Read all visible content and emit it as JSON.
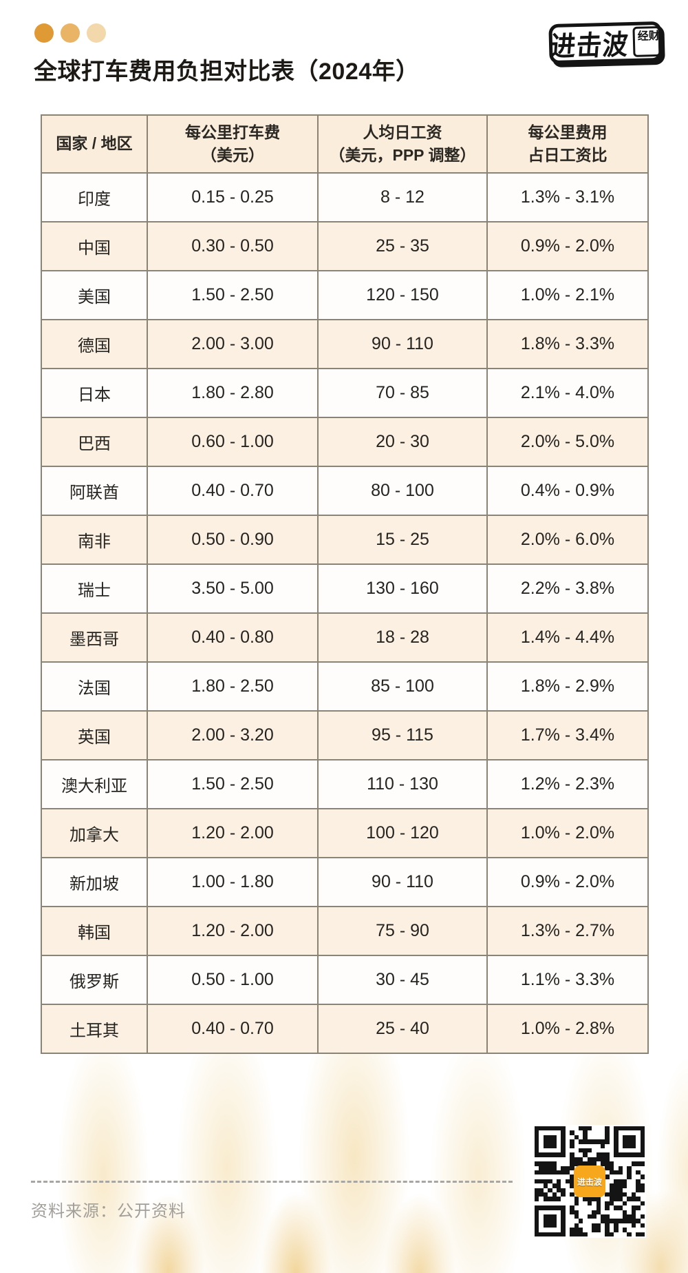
{
  "title": "全球打车费用负担对比表（2024年）",
  "brand": {
    "main": "进击波",
    "sub": "财经"
  },
  "decor": {
    "dot_colors": [
      "#df9a35",
      "#eab466",
      "#f2d8ab"
    ]
  },
  "colors": {
    "header_bg": "#faeddb",
    "row_bg": "#fffdfb",
    "row_alt_bg": "#fbf0e2",
    "table_border": "#8b8474",
    "qr_logo_bg": "#f6a71b"
  },
  "chart_data": {
    "type": "table",
    "title": "全球打车费用负担对比表（2024年）",
    "columns": [
      {
        "label_lines": [
          "国家 / 地区"
        ]
      },
      {
        "label_lines": [
          "每公里打车费",
          "（美元）"
        ]
      },
      {
        "label_lines": [
          "人均日工资",
          "（美元，PPP 调整）"
        ]
      },
      {
        "label_lines": [
          "每公里费用",
          "占日工资比"
        ]
      }
    ],
    "rows": [
      [
        "印度",
        "0.15 - 0.25",
        "8 - 12",
        "1.3% - 3.1%"
      ],
      [
        "中国",
        "0.30 - 0.50",
        "25 - 35",
        "0.9% - 2.0%"
      ],
      [
        "美国",
        "1.50 - 2.50",
        "120 - 150",
        "1.0% - 2.1%"
      ],
      [
        "德国",
        "2.00 - 3.00",
        "90 - 110",
        "1.8% - 3.3%"
      ],
      [
        "日本",
        "1.80 - 2.80",
        "70 - 85",
        "2.1% - 4.0%"
      ],
      [
        "巴西",
        "0.60 - 1.00",
        "20 - 30",
        "2.0% - 5.0%"
      ],
      [
        "阿联酋",
        "0.40 - 0.70",
        "80 - 100",
        "0.4% - 0.9%"
      ],
      [
        "南非",
        "0.50 - 0.90",
        "15 - 25",
        "2.0% - 6.0%"
      ],
      [
        "瑞士",
        "3.50 - 5.00",
        "130 - 160",
        "2.2% - 3.8%"
      ],
      [
        "墨西哥",
        "0.40 - 0.80",
        "18 - 28",
        "1.4% - 4.4%"
      ],
      [
        "法国",
        "1.80 - 2.50",
        "85 - 100",
        "1.8% - 2.9%"
      ],
      [
        "英国",
        "2.00 - 3.20",
        "95 - 115",
        "1.7% - 3.4%"
      ],
      [
        "澳大利亚",
        "1.50 - 2.50",
        "110 - 130",
        "1.2% - 2.3%"
      ],
      [
        "加拿大",
        "1.20 - 2.00",
        "100 - 120",
        "1.0% - 2.0%"
      ],
      [
        "新加坡",
        "1.00 - 1.80",
        "90 - 110",
        "0.9% - 2.0%"
      ],
      [
        "韩国",
        "1.20 - 2.00",
        "75 - 90",
        "1.3% - 2.7%"
      ],
      [
        "俄罗斯",
        "0.50 - 1.00",
        "30 - 45",
        "1.1% - 3.3%"
      ],
      [
        "土耳其",
        "0.40 - 0.70",
        "25 - 40",
        "1.0% - 2.8%"
      ]
    ]
  },
  "footer": {
    "source": "资料来源：公开资料",
    "qr_logo_text": "进击波"
  }
}
